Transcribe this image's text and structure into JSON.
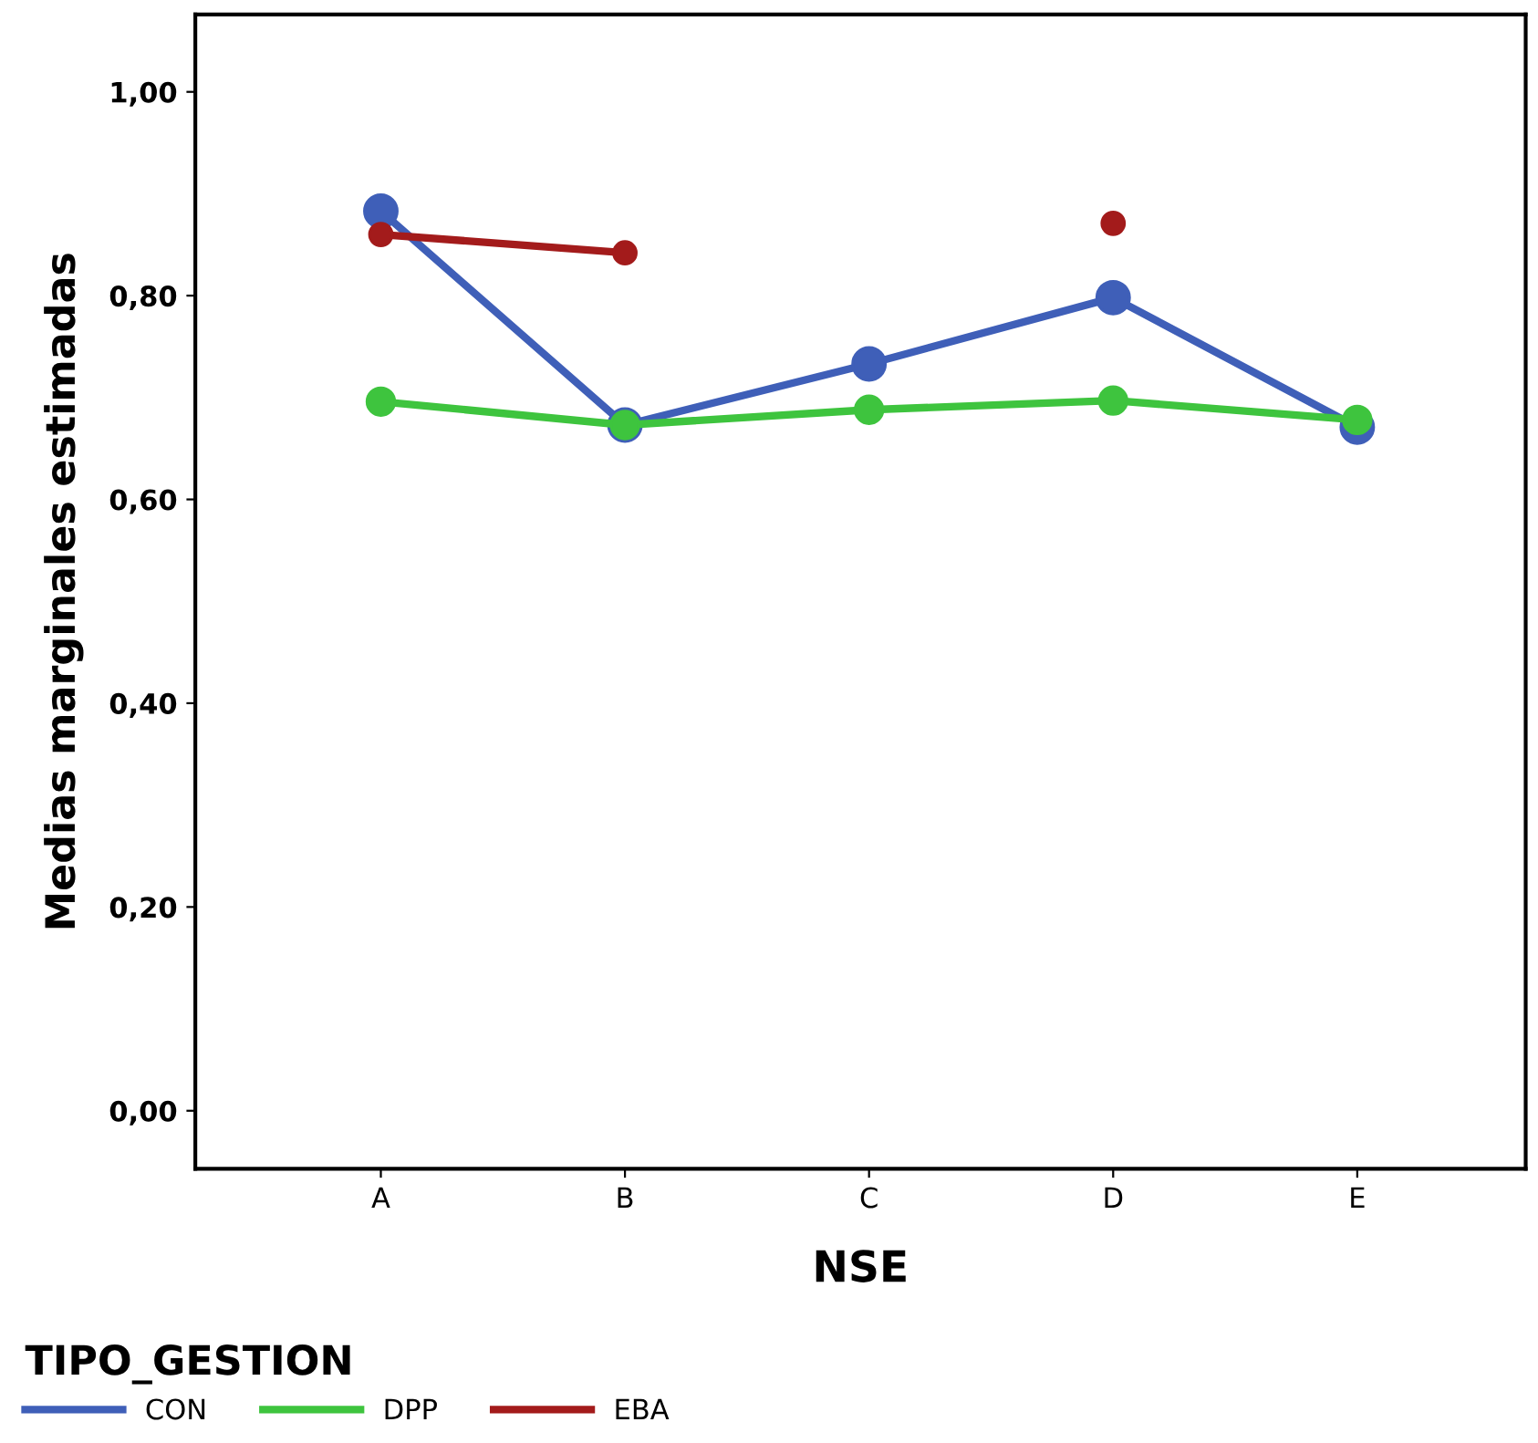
{
  "chart_data": {
    "type": "line",
    "xlabel": "NSE",
    "ylabel": "Medias marginales estimadas",
    "legend_title": "TIPO_GESTION",
    "categories": [
      "A",
      "B",
      "C",
      "D",
      "E"
    ],
    "series": [
      {
        "name": "CON",
        "color": "#3f5fb8",
        "values": [
          0.883,
          0.673,
          0.733,
          0.798,
          0.671
        ]
      },
      {
        "name": "DPP",
        "color": "#3ec43e",
        "values": [
          0.696,
          0.673,
          0.688,
          0.697,
          0.678
        ]
      },
      {
        "name": "EBA",
        "color": "#a31b1b",
        "values": [
          0.86,
          0.842,
          null,
          0.871,
          null
        ]
      }
    ],
    "ylim": [
      -0.057,
      1.076
    ],
    "yticks": [
      {
        "value": 0,
        "label": "0,00"
      },
      {
        "value": 0.2,
        "label": "0,20"
      },
      {
        "value": 0.4,
        "label": "0,40"
      },
      {
        "value": 0.6,
        "label": "0,60"
      },
      {
        "value": 0.8,
        "label": "0,80"
      },
      {
        "value": 1.0,
        "label": "1,00"
      }
    ],
    "grid": false,
    "legend": "bottom",
    "marker": "circle",
    "line_style": "solid"
  }
}
